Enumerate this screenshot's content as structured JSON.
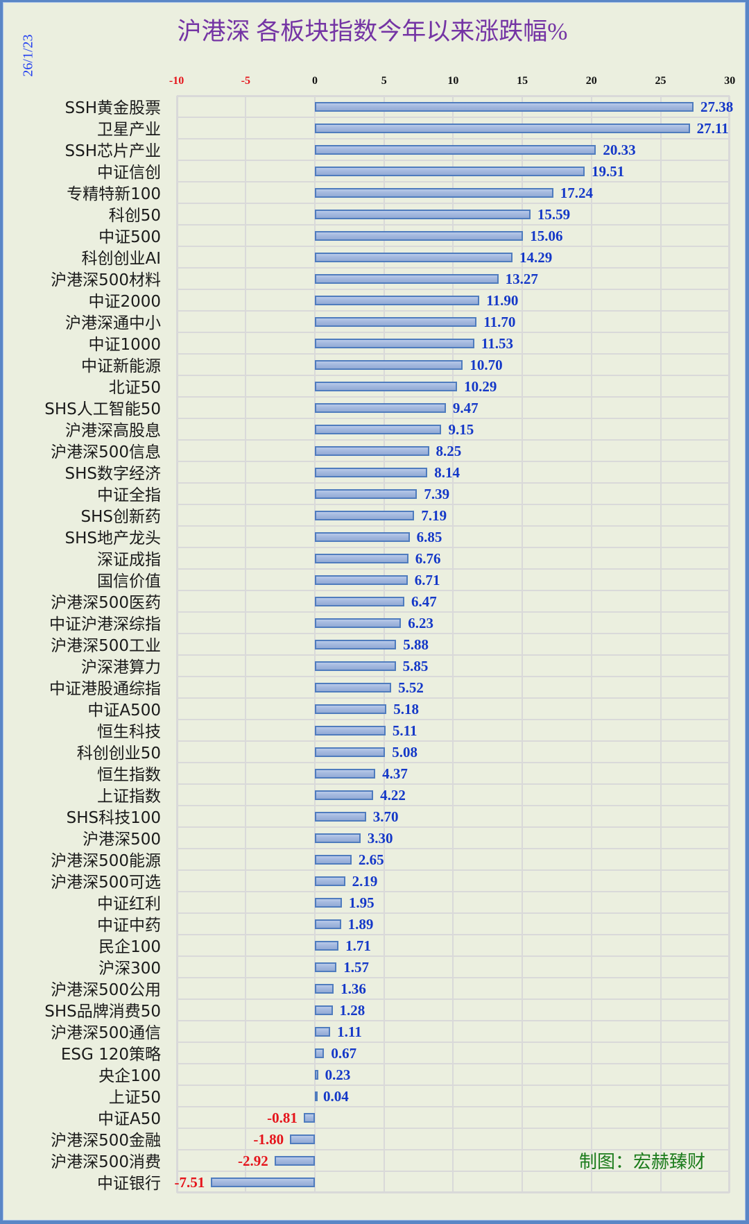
{
  "date_label": "26/1/23",
  "title": "沪港深 各板块指数今年以来涨跌幅%",
  "credit": "制图：宏赫臻财",
  "colors": {
    "background": "#ebefdf",
    "frame": "#5a86c6",
    "title": "#7434a4",
    "date": "#1f3cf0",
    "positive_tick": "#111111",
    "negative_tick": "#e5141b",
    "positive_label": "#1438c8",
    "negative_label": "#e5141b",
    "bar_fill": "#a2b7de",
    "bar_border": "#4f7cbe",
    "grid": "#d9d9d9",
    "credit": "#1c7c1c"
  },
  "chart_data": {
    "type": "bar",
    "orientation": "horizontal",
    "title": "沪港深 各板块指数今年以来涨跌幅%",
    "xlabel": "",
    "ylabel": "",
    "xlim": [
      -10,
      30
    ],
    "x_ticks": [
      -10,
      -5,
      0,
      5,
      10,
      15,
      20,
      25,
      30
    ],
    "x_tick_labels": [
      "-10",
      "-5",
      "0",
      "5",
      "10",
      "15",
      "20",
      "25",
      "30"
    ],
    "x_axis_position": "top",
    "grid": true,
    "legend": null,
    "categories": [
      "SSH黄金股票",
      "卫星产业",
      "SSH芯片产业",
      "中证信创",
      "专精特新100",
      "科创50",
      "中证500",
      "科创创业AI",
      "沪港深500材料",
      "中证2000",
      "沪港深通中小",
      "中证1000",
      "中证新能源",
      "北证50",
      "SHS人工智能50",
      "沪港深高股息",
      "沪港深500信息",
      "SHS数字经济",
      "中证全指",
      "SHS创新药",
      "SHS地产龙头",
      "深证成指",
      "国信价值",
      "沪港深500医药",
      "中证沪港深综指",
      "沪港深500工业",
      "沪深港算力",
      "中证港股通综指",
      "中证A500",
      "恒生科技",
      "科创创业50",
      "恒生指数",
      "上证指数",
      "SHS科技100",
      "沪港深500",
      "沪港深500能源",
      "沪港深500可选",
      "中证红利",
      "中证中药",
      "民企100",
      "沪深300",
      "沪港深500公用",
      "SHS品牌消费50",
      "沪港深500通信",
      "ESG 120策略",
      "央企100",
      "上证50",
      "中证A50",
      "沪港深500金融",
      "沪港深500消费",
      "中证银行"
    ],
    "values": [
      27.38,
      27.11,
      20.33,
      19.51,
      17.24,
      15.59,
      15.06,
      14.29,
      13.27,
      11.9,
      11.7,
      11.53,
      10.7,
      10.29,
      9.47,
      9.15,
      8.25,
      8.14,
      7.39,
      7.19,
      6.85,
      6.76,
      6.71,
      6.47,
      6.23,
      5.88,
      5.85,
      5.52,
      5.18,
      5.11,
      5.08,
      4.37,
      4.22,
      3.7,
      3.3,
      2.65,
      2.19,
      1.95,
      1.89,
      1.71,
      1.57,
      1.36,
      1.28,
      1.11,
      0.67,
      0.23,
      0.04,
      -0.81,
      -1.8,
      -2.92,
      -7.51
    ],
    "value_labels": [
      "27.38",
      "27.11",
      "20.33",
      "19.51",
      "17.24",
      "15.59",
      "15.06",
      "14.29",
      "13.27",
      "11.90",
      "11.70",
      "11.53",
      "10.70",
      "10.29",
      "9.47",
      "9.15",
      "8.25",
      "8.14",
      "7.39",
      "7.19",
      "6.85",
      "6.76",
      "6.71",
      "6.47",
      "6.23",
      "5.88",
      "5.85",
      "5.52",
      "5.18",
      "5.11",
      "5.08",
      "4.37",
      "4.22",
      "3.70",
      "3.30",
      "2.65",
      "2.19",
      "1.95",
      "1.89",
      "1.71",
      "1.57",
      "1.36",
      "1.28",
      "1.11",
      "0.67",
      "0.23",
      "0.04",
      "-0.81",
      "-1.80",
      "-2.92",
      "-7.51"
    ],
    "annotations": [
      "26/1/23",
      "制图：宏赫臻财"
    ]
  }
}
